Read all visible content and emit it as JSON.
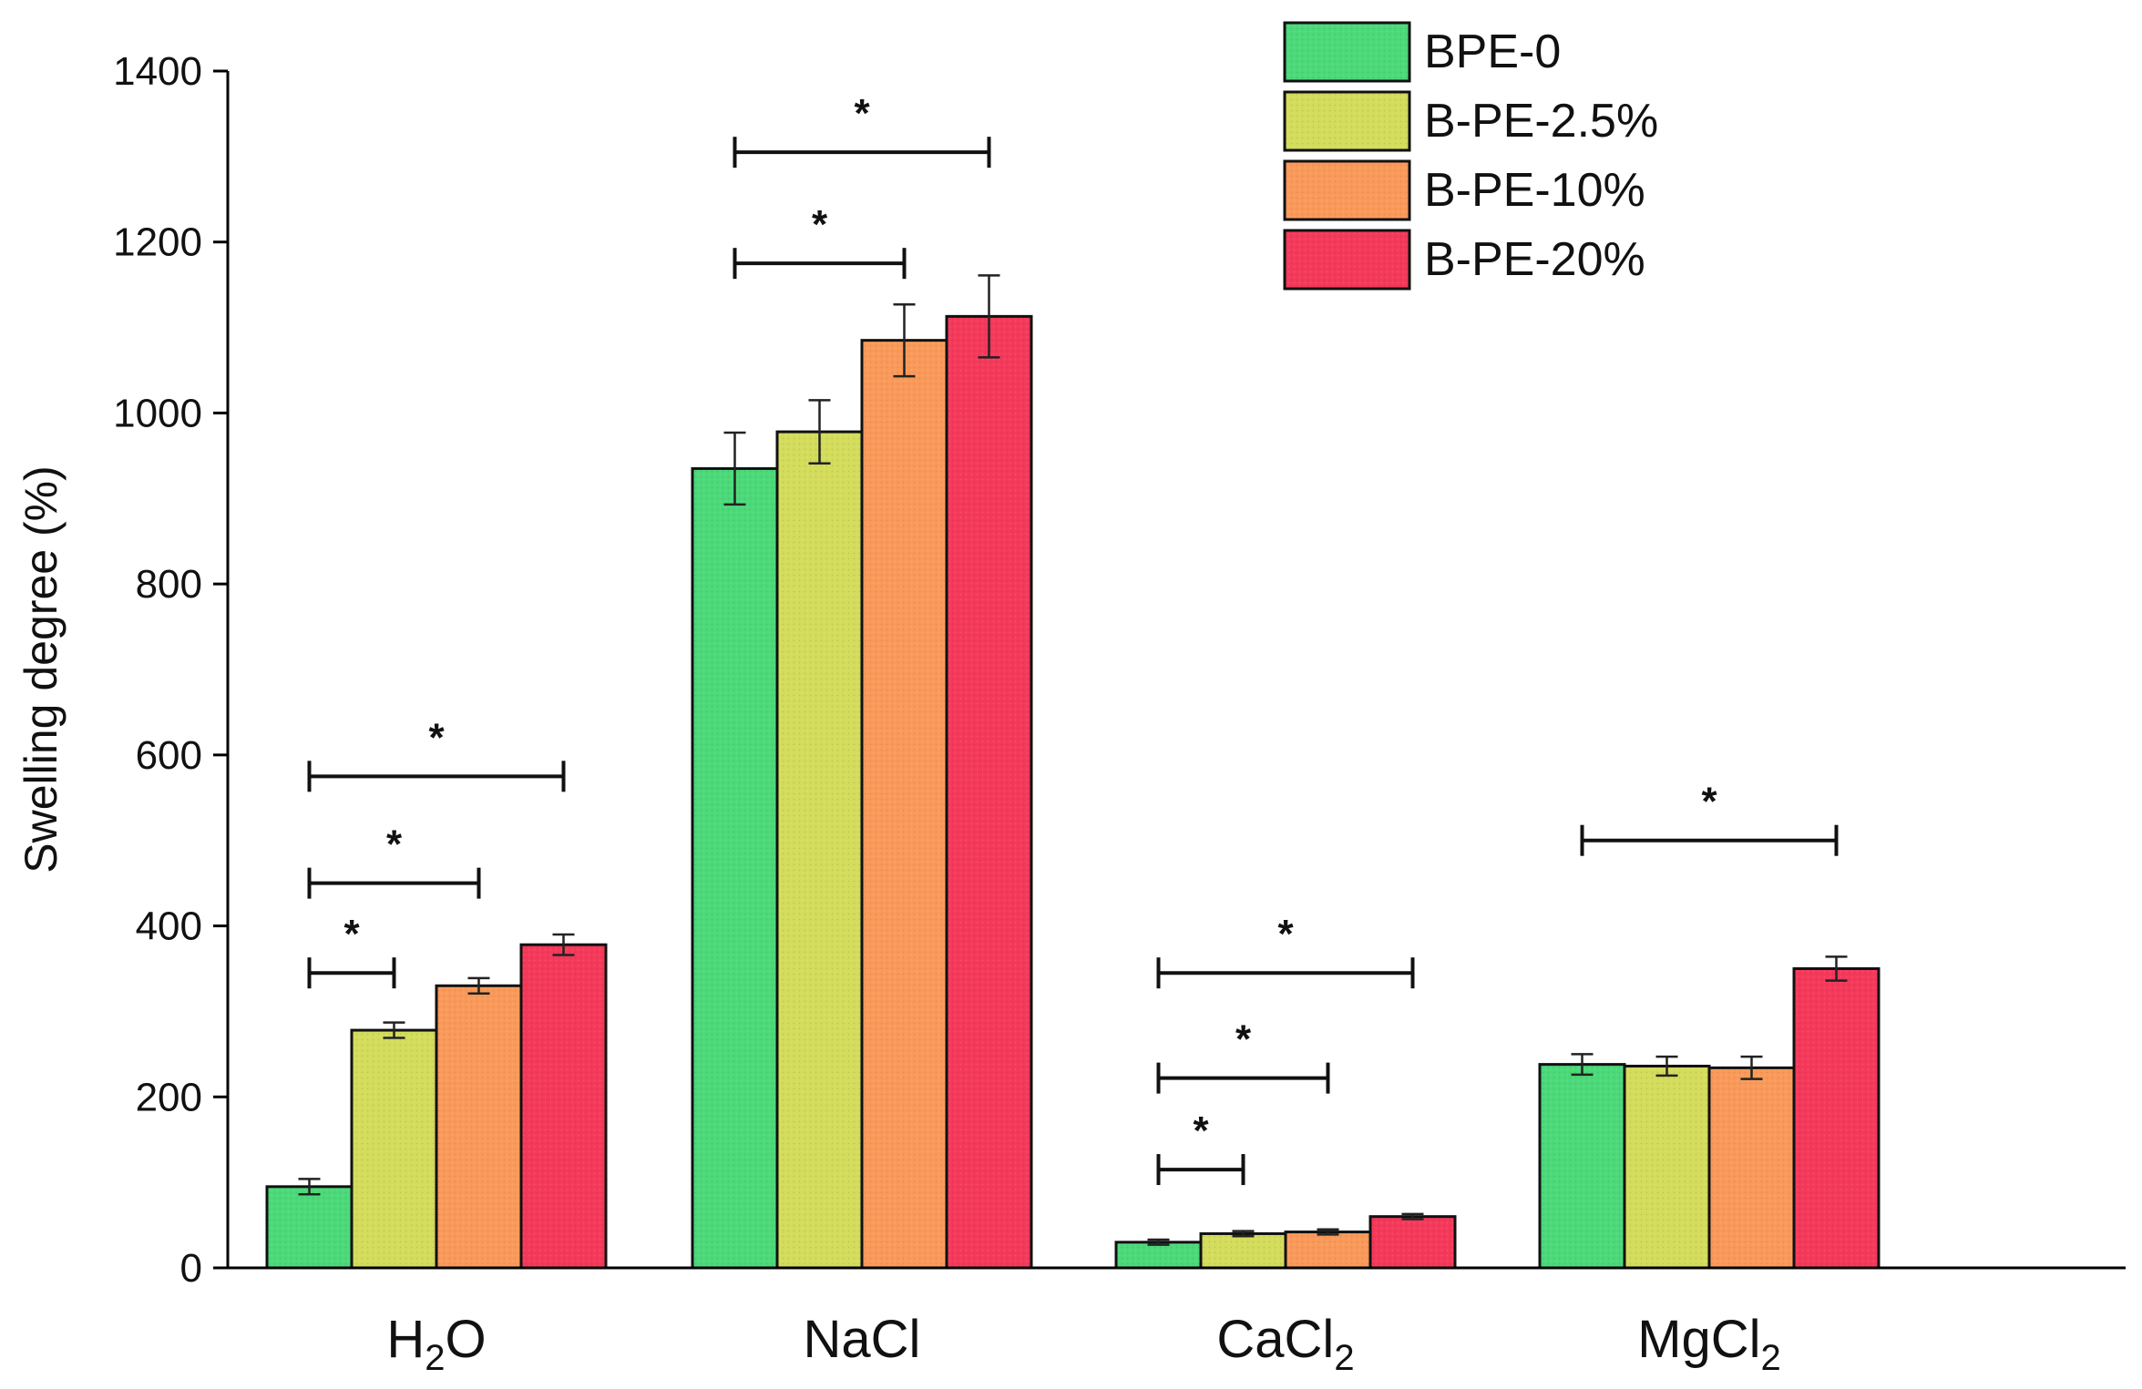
{
  "chart_data": {
    "type": "bar",
    "title": "",
    "xlabel": "",
    "ylabel": "Swelling degree (%)",
    "ylim": [
      0,
      1400
    ],
    "yticks": [
      0,
      200,
      400,
      600,
      800,
      1000,
      1200,
      1400
    ],
    "categories": [
      {
        "base": "H",
        "sub": "2",
        "tail": "O"
      },
      {
        "base": "NaCl",
        "sub": "",
        "tail": ""
      },
      {
        "base": "CaCl",
        "sub": "2",
        "tail": ""
      },
      {
        "base": "MgCl",
        "sub": "2",
        "tail": ""
      }
    ],
    "series": [
      {
        "name": "BPE-0",
        "color": "#4cd97a",
        "values": [
          95,
          935,
          30,
          238
        ],
        "errors": [
          9,
          42,
          3,
          12
        ]
      },
      {
        "name": "B-PE-2.5%",
        "color": "#d4dc5c",
        "values": [
          278,
          978,
          40,
          236
        ],
        "errors": [
          9,
          37,
          3,
          11
        ]
      },
      {
        "name": "B-PE-10%",
        "color": "#fa9a5a",
        "values": [
          330,
          1085,
          42,
          234
        ],
        "errors": [
          9,
          42,
          3,
          13
        ]
      },
      {
        "name": "B-PE-20%",
        "color": "#f5395b",
        "values": [
          378,
          1113,
          60,
          350
        ],
        "errors": [
          12,
          48,
          3,
          14
        ]
      }
    ],
    "legend_position": "top-right",
    "significance": [
      {
        "category": 0,
        "from": 0,
        "to": 1,
        "y": 345,
        "label": "*"
      },
      {
        "category": 0,
        "from": 0,
        "to": 2,
        "y": 450,
        "label": "*"
      },
      {
        "category": 0,
        "from": 0,
        "to": 3,
        "y": 575,
        "label": "*"
      },
      {
        "category": 1,
        "from": 0,
        "to": 2,
        "y": 1175,
        "label": "*"
      },
      {
        "category": 1,
        "from": 0,
        "to": 3,
        "y": 1305,
        "label": "*"
      },
      {
        "category": 2,
        "from": 0,
        "to": 1,
        "y": 115,
        "label": "*"
      },
      {
        "category": 2,
        "from": 0,
        "to": 2,
        "y": 222,
        "label": "*"
      },
      {
        "category": 2,
        "from": 0,
        "to": 3,
        "y": 345,
        "label": "*"
      },
      {
        "category": 3,
        "from": 0,
        "to": 3,
        "y": 500,
        "label": "*"
      }
    ]
  }
}
